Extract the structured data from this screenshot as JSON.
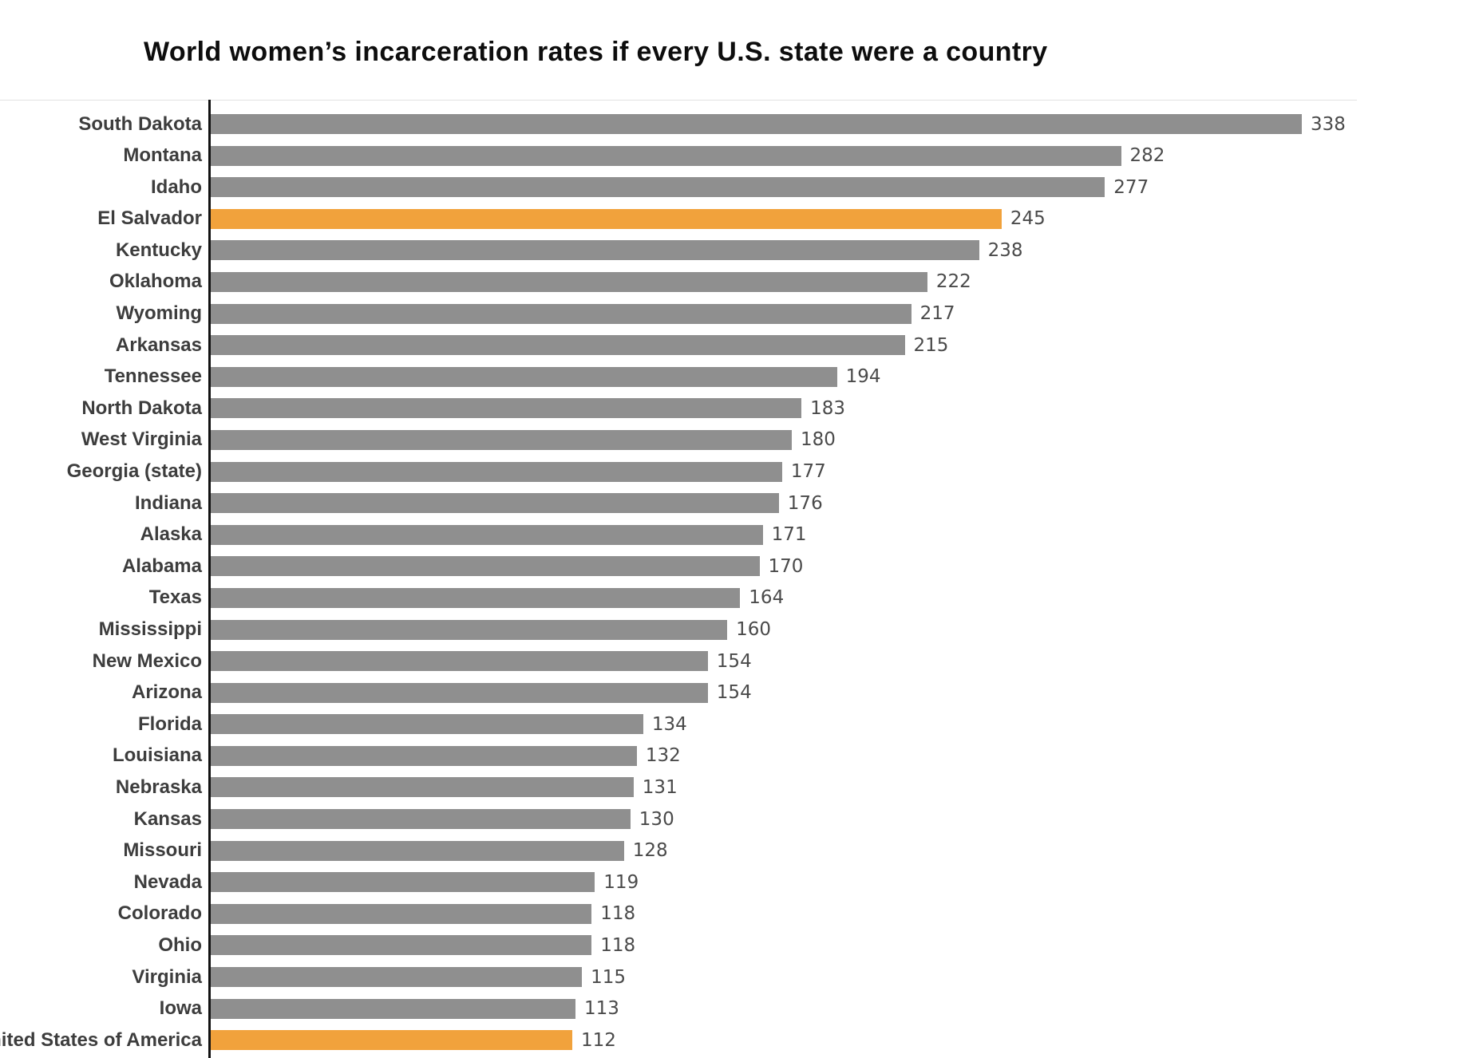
{
  "chart_data": {
    "type": "bar",
    "orientation": "horizontal",
    "title": "World women’s incarceration rates if every U.S. state were a country",
    "xlabel": "",
    "ylabel": "",
    "xlim": [
      0,
      338
    ],
    "grid": false,
    "legend": "none",
    "value_labels": true,
    "bar_color": "#8f8f8f",
    "highlight_color": "#f1a23c",
    "categories": [
      "South Dakota",
      "Montana",
      "Idaho",
      "El Salvador",
      "Kentucky",
      "Oklahoma",
      "Wyoming",
      "Arkansas",
      "Tennessee",
      "North Dakota",
      "West Virginia",
      "Georgia (state)",
      "Indiana",
      "Alaska",
      "Alabama",
      "Texas",
      "Mississippi",
      "New Mexico",
      "Arizona",
      "Florida",
      "Louisiana",
      "Nebraska",
      "Kansas",
      "Missouri",
      "Nevada",
      "Colorado",
      "Ohio",
      "Virginia",
      "Iowa",
      "United States of America"
    ],
    "values": [
      338,
      282,
      277,
      245,
      238,
      222,
      217,
      215,
      194,
      183,
      180,
      177,
      176,
      171,
      170,
      164,
      160,
      154,
      154,
      134,
      132,
      131,
      130,
      128,
      119,
      118,
      118,
      115,
      113,
      112
    ],
    "highlighted": [
      "El Salvador",
      "United States of America"
    ]
  },
  "colors": {
    "background": "#ffffff",
    "axis_line": "#121212",
    "plot_top_line": "#e2e2e2",
    "category_label": "#3d3d3d",
    "value_label": "#4a4a4a"
  }
}
